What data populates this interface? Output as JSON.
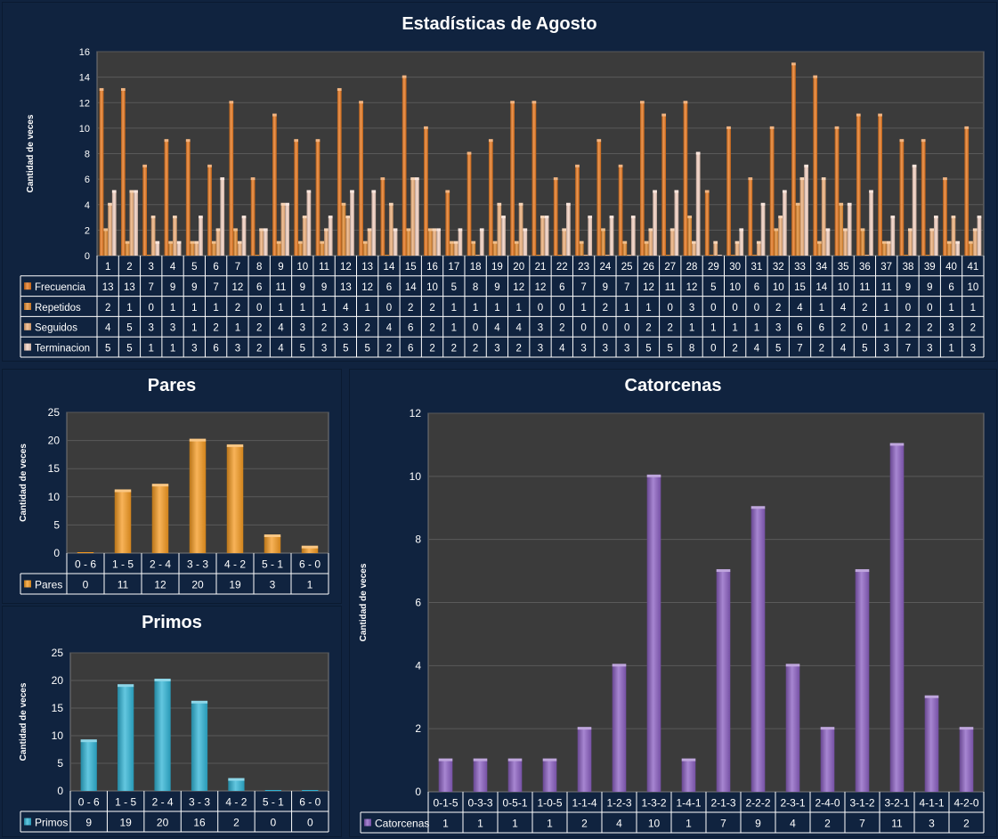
{
  "colors": {
    "background": "#10233f",
    "plot_area": "#3b3b3b",
    "grid": "#5a5a5a",
    "frecuencia": "#e8761a",
    "repetidos": "#e4892c",
    "seguidos": "#f0b07a",
    "terminacion": "#f5d2c2",
    "pares": "#f59a20",
    "primos": "#2fb4d6",
    "catorcenas": "#8a5ec1"
  },
  "chart_data": [
    {
      "id": "main",
      "type": "bar",
      "title": "Estadísticas de Agosto",
      "ylabel": "Cantidad de veces",
      "xlabel": "",
      "ylim": [
        0,
        16
      ],
      "yticks": [
        0,
        2,
        4,
        6,
        8,
        10,
        12,
        14,
        16
      ],
      "grid": true,
      "legend": "table",
      "categories": [
        "1",
        "2",
        "3",
        "4",
        "5",
        "6",
        "7",
        "8",
        "9",
        "10",
        "11",
        "12",
        "13",
        "14",
        "15",
        "16",
        "17",
        "18",
        "19",
        "20",
        "21",
        "22",
        "23",
        "24",
        "25",
        "26",
        "27",
        "28",
        "29",
        "30",
        "31",
        "32",
        "33",
        "34",
        "35",
        "36",
        "37",
        "38",
        "39",
        "40",
        "41"
      ],
      "series": [
        {
          "name": "Frecuencia",
          "values": [
            13,
            13,
            7,
            9,
            9,
            7,
            12,
            6,
            11,
            9,
            9,
            13,
            12,
            6,
            14,
            10,
            5,
            8,
            9,
            12,
            12,
            6,
            7,
            9,
            7,
            12,
            11,
            12,
            5,
            10,
            6,
            10,
            15,
            14,
            10,
            11,
            11,
            9,
            9,
            6,
            10
          ]
        },
        {
          "name": "Repetidos",
          "values": [
            2,
            1,
            0,
            1,
            1,
            1,
            2,
            0,
            1,
            1,
            1,
            4,
            1,
            0,
            2,
            2,
            1,
            1,
            1,
            1,
            0,
            0,
            1,
            2,
            1,
            1,
            0,
            3,
            0,
            0,
            0,
            2,
            4,
            1,
            4,
            2,
            1,
            0,
            0,
            1,
            1
          ]
        },
        {
          "name": "Seguidos",
          "values": [
            4,
            5,
            3,
            3,
            1,
            2,
            1,
            2,
            4,
            3,
            2,
            3,
            2,
            4,
            6,
            2,
            1,
            0,
            4,
            4,
            3,
            2,
            0,
            0,
            0,
            2,
            2,
            1,
            1,
            1,
            1,
            3,
            6,
            6,
            2,
            0,
            1,
            2,
            2,
            3,
            2
          ]
        },
        {
          "name": "Terminacion",
          "values": [
            5,
            5,
            1,
            1,
            3,
            6,
            3,
            2,
            4,
            5,
            3,
            5,
            5,
            2,
            6,
            2,
            2,
            2,
            3,
            2,
            3,
            4,
            3,
            3,
            3,
            5,
            5,
            8,
            0,
            2,
            4,
            5,
            7,
            2,
            4,
            5,
            3,
            7,
            3,
            1,
            3
          ]
        }
      ]
    },
    {
      "id": "pares",
      "type": "bar",
      "title": "Pares",
      "ylabel": "Cantidad de veces",
      "xlabel": "",
      "ylim": [
        0,
        25
      ],
      "yticks": [
        0,
        5,
        10,
        15,
        20,
        25
      ],
      "grid": true,
      "legend": "table",
      "categories": [
        "0 - 6",
        "1 - 5",
        "2 - 4",
        "3 - 3",
        "4 - 2",
        "5 - 1",
        "6 - 0"
      ],
      "series": [
        {
          "name": "Pares",
          "values": [
            0,
            11,
            12,
            20,
            19,
            3,
            1
          ]
        }
      ]
    },
    {
      "id": "primos",
      "type": "bar",
      "title": "Primos",
      "ylabel": "Cantidad de veces",
      "xlabel": "",
      "ylim": [
        0,
        25
      ],
      "yticks": [
        0,
        5,
        10,
        15,
        20,
        25
      ],
      "grid": true,
      "legend": "table",
      "categories": [
        "0 - 6",
        "1 - 5",
        "2 - 4",
        "3 - 3",
        "4 - 2",
        "5 - 1",
        "6 - 0"
      ],
      "series": [
        {
          "name": "Primos",
          "values": [
            9,
            19,
            20,
            16,
            2,
            0,
            0
          ]
        }
      ]
    },
    {
      "id": "catorcenas",
      "type": "bar",
      "title": "Catorcenas",
      "ylabel": "Cantidad de veces",
      "xlabel": "",
      "ylim": [
        0,
        12
      ],
      "yticks": [
        0,
        2,
        4,
        6,
        8,
        10,
        12
      ],
      "grid": true,
      "legend": "table",
      "categories": [
        "0-1-5",
        "0-3-3",
        "0-5-1",
        "1-0-5",
        "1-1-4",
        "1-2-3",
        "1-3-2",
        "1-4-1",
        "2-1-3",
        "2-2-2",
        "2-3-1",
        "2-4-0",
        "3-1-2",
        "3-2-1",
        "4-1-1",
        "4-2-0"
      ],
      "series": [
        {
          "name": "Catorcenas",
          "values": [
            1,
            1,
            1,
            1,
            2,
            4,
            10,
            1,
            7,
            9,
            4,
            2,
            7,
            11,
            3,
            2
          ]
        }
      ]
    }
  ]
}
